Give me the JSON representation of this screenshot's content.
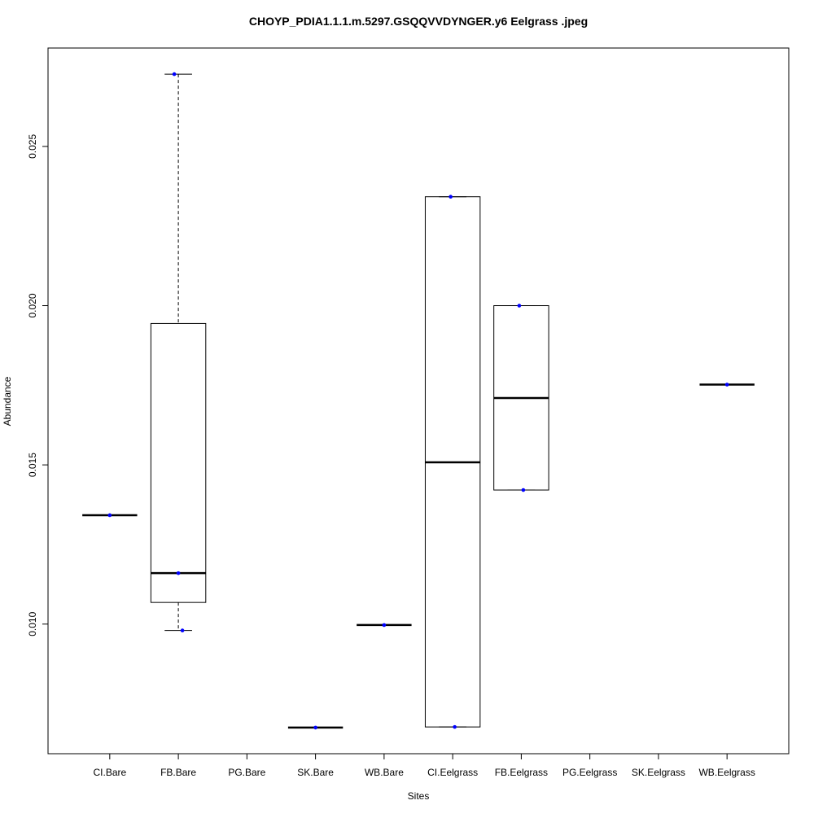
{
  "chart_data": {
    "type": "box",
    "title": "CHOYP_PDIA1.1.1.m.5297.GSQQVVDYNGER.y6 Eelgrass .jpeg",
    "x_label": "Sites",
    "y_label": "Abundance",
    "categories": [
      "CI.Bare",
      "FB.Bare",
      "PG.Bare",
      "SK.Bare",
      "WB.Bare",
      "CI.Eelgrass",
      "FB.Eelgrass",
      "PG.Eelgrass",
      "SK.Eelgrass",
      "WB.Eelgrass"
    ],
    "boxes": [
      {
        "min": 0.01342,
        "q1": 0.01342,
        "median": 0.01342,
        "q3": 0.01342,
        "max": 0.01342,
        "points": [
          0.01342
        ]
      },
      {
        "min": 0.0098,
        "q1": 0.01068,
        "median": 0.0116,
        "q3": 0.01944,
        "max": 0.02727,
        "points": [
          0.02727,
          0.0116,
          0.0098
        ]
      },
      null,
      {
        "min": 0.00675,
        "q1": 0.00675,
        "median": 0.00675,
        "q3": 0.00675,
        "max": 0.00675,
        "points": [
          0.00675
        ]
      },
      {
        "min": 0.00997,
        "q1": 0.00997,
        "median": 0.00997,
        "q3": 0.00997,
        "max": 0.00997,
        "points": [
          0.00997
        ]
      },
      {
        "min": 0.00677,
        "q1": 0.00677,
        "median": 0.01508,
        "q3": 0.02342,
        "max": 0.02342,
        "points": [
          0.02342,
          0.00677
        ]
      },
      {
        "min": 0.01421,
        "q1": 0.01421,
        "median": 0.0171,
        "q3": 0.02,
        "max": 0.02,
        "points": [
          0.02,
          0.01421
        ]
      },
      null,
      null,
      {
        "min": 0.01752,
        "q1": 0.01752,
        "median": 0.01752,
        "q3": 0.01752,
        "max": 0.01752,
        "points": [
          0.01752
        ]
      }
    ],
    "point_color": "#0000ff",
    "ylim": [
      0.00593,
      0.02809
    ],
    "yticks": [
      {
        "value": 0.01,
        "label": "0.010"
      },
      0.015,
      {
        "value": 0.02,
        "label": "0.020"
      },
      0.025
    ]
  }
}
